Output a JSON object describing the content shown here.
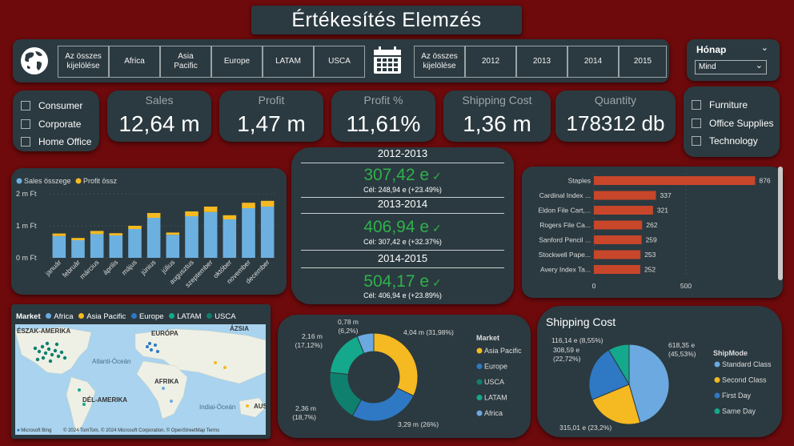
{
  "header": {
    "title": "Értékesítés Elemzés"
  },
  "market_slicer": {
    "items": [
      "Az összes kijelölése",
      "Africa",
      "Asia Pacific",
      "Europe",
      "LATAM",
      "USCA"
    ]
  },
  "year_slicer": {
    "items": [
      "Az összes kijelölése",
      "2012",
      "2013",
      "2014",
      "2015"
    ]
  },
  "month_filter": {
    "label": "Hónap",
    "value": "Mind"
  },
  "segments": [
    "Consumer",
    "Corporate",
    "Home Office"
  ],
  "categories": [
    "Furniture",
    "Office Supplies",
    "Technology"
  ],
  "kpis": [
    {
      "label": "Sales",
      "value": "12,64 m"
    },
    {
      "label": "Profit",
      "value": "1,47 m"
    },
    {
      "label": "Profit %",
      "value": "11,61%"
    },
    {
      "label": "Shipping Cost",
      "value": "1,36 m"
    },
    {
      "label": "Quantity",
      "value": "178312 db"
    }
  ],
  "yoy": [
    {
      "period": "2012-2013",
      "value": "307,42 e",
      "target": "Cél: 248,94 e (+23.49%)"
    },
    {
      "period": "2013-2014",
      "value": "406,94 e",
      "target": "Cél: 307,42 e (+32.37%)"
    },
    {
      "period": "2014-2015",
      "value": "504,17 e",
      "target": "Cél: 406,94 e (+23.89%)"
    }
  ],
  "map": {
    "legend_title": "Market",
    "legend": [
      "Africa",
      "Asia Pacific",
      "Europe",
      "LATAM",
      "USCA"
    ],
    "labels": [
      "ÉSZAK-AMERIKA",
      "EURÓPA",
      "ÁZSIA",
      "Atlanti-Óceán",
      "AFRIKA",
      "DÉL-AMERIKA",
      "Indiai-Óceán",
      "AUS"
    ],
    "credit": "© 2024 TomTom, © 2024 Microsoft Corporation, © OpenStreetMap  Terms",
    "brand": "Microsoft Bing"
  },
  "colors": {
    "sales": "#6cb0e0",
    "profit": "#f5b921",
    "bar_orange": "#c8462a",
    "africa": "#6ca9e0",
    "asia_pacific": "#f5b921",
    "europe": "#2e78c4",
    "latam": "#14a98c",
    "usca": "#0f7f6e",
    "good": "#2fb14b"
  },
  "chart_data": [
    {
      "type": "bar",
      "legend": [
        "Sales összege",
        "Profit össz"
      ],
      "categories": [
        "január",
        "február",
        "március",
        "április",
        "május",
        "június",
        "július",
        "augusztus",
        "szeptember",
        "október",
        "november",
        "december"
      ],
      "series": [
        {
          "name": "Sales összege",
          "values": [
            0.68,
            0.55,
            0.74,
            0.7,
            0.9,
            1.25,
            0.72,
            1.3,
            1.43,
            1.2,
            1.55,
            1.6
          ]
        },
        {
          "name": "Profit össz",
          "values": [
            0.08,
            0.07,
            0.1,
            0.07,
            0.1,
            0.15,
            0.07,
            0.15,
            0.17,
            0.13,
            0.17,
            0.18
          ]
        }
      ],
      "yticks": [
        "0 m Ft",
        "1 m Ft",
        "2 m Ft"
      ],
      "ylim": [
        0,
        2
      ]
    },
    {
      "type": "bar",
      "orientation": "horizontal",
      "categories": [
        "Staples",
        "Cardinal Index ...",
        "Eldon File Cart,...",
        "Rogers File Ca...",
        "Sanford Pencil ...",
        "Stockwell Pape...",
        "Avery Index Ta..."
      ],
      "values": [
        876,
        337,
        321,
        262,
        259,
        253,
        252
      ],
      "xticks": [
        "0",
        "500"
      ],
      "xlim": [
        0,
        1000
      ]
    },
    {
      "type": "pie",
      "donut": true,
      "legend_title": "Market",
      "categories": [
        "Asia Pacific",
        "Europe",
        "USCA",
        "LATAM",
        "Africa"
      ],
      "values": [
        4.04,
        3.29,
        2.36,
        2.16,
        0.78
      ],
      "labels": [
        "4,04 m (31,98%)",
        "3,29 m (26%)",
        "2,36 m (18,7%)",
        "2,16 m (17,12%)",
        "0,78 m (6,2%)"
      ]
    },
    {
      "type": "pie",
      "title": "Shipping Cost",
      "legend_title": "ShipMode",
      "categories": [
        "Standard Class",
        "Second Class",
        "First Day",
        "Same Day"
      ],
      "values": [
        618.35,
        315.01,
        308.59,
        116.14
      ],
      "labels": [
        "618,35 e (45,53%)",
        "315,01 e (23,2%)",
        "308,59 e (22,72%)",
        "116,14 e (8,55%)"
      ]
    }
  ]
}
